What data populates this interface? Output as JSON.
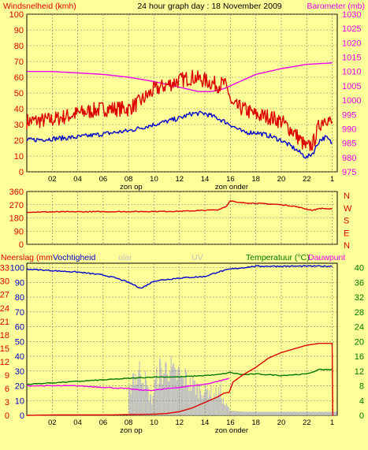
{
  "header": {
    "left_label": "Windsnelheid (kmh)",
    "title": "24 hour graph day : 18 November 2009",
    "right_label": "Barometer (mb)"
  },
  "x_axis": {
    "tick_labels": [
      "02",
      "04",
      "06",
      "08",
      "10",
      "12",
      "14",
      "16",
      "18",
      "20",
      "22",
      "1"
    ],
    "sunrise_label": "zon op",
    "sunset_label": "zon onder",
    "sunrise_hour": 8.2,
    "sunset_hour": 16.1
  },
  "colors": {
    "background": "#ffff99",
    "grid": "#777777",
    "red": "#dd0000",
    "blue": "#0000cc",
    "magenta": "#ee00ee",
    "green": "#007700",
    "gray": "#c0c0c0"
  },
  "chart_data": [
    {
      "type": "line",
      "x_range": [
        0,
        24.4
      ],
      "left_axis": {
        "label": "Windsnelheid (kmh)",
        "ticks": [
          0,
          10,
          20,
          30,
          40,
          50,
          60,
          70,
          80,
          90,
          100
        ],
        "ylim": [
          0,
          100
        ]
      },
      "right_axis": {
        "label": "Barometer (mb)",
        "ticks": [
          975,
          980,
          985,
          990,
          995,
          1000,
          1005,
          1010,
          1015,
          1020,
          1025,
          1030
        ],
        "ylim": [
          975,
          1030
        ]
      },
      "grid": true,
      "series": [
        {
          "color": "#dd0000",
          "axis": "left",
          "noise": 5,
          "x": [
            0,
            2,
            4,
            6,
            8,
            9,
            10,
            11,
            12,
            13,
            14,
            15,
            15.5,
            15.9,
            16.1,
            17,
            18,
            19,
            20,
            21,
            21.5,
            22,
            22.5,
            23,
            23.5,
            24
          ],
          "y": [
            32,
            33,
            37,
            40,
            40,
            45,
            52,
            55,
            58,
            60,
            58,
            55,
            56,
            50,
            42,
            40,
            36,
            35,
            32,
            25,
            20,
            15,
            18,
            30,
            35,
            30
          ]
        },
        {
          "color": "#0000cc",
          "axis": "left",
          "noise": 1.5,
          "x": [
            0,
            2,
            4,
            6,
            8,
            10,
            12,
            13,
            14,
            15,
            16,
            17,
            18,
            19,
            20,
            21,
            21.5,
            22,
            22.5,
            23,
            23.5,
            24
          ],
          "y": [
            20,
            21,
            22,
            24,
            26,
            30,
            34,
            37,
            37,
            34,
            30,
            25,
            25,
            23,
            20,
            15,
            12,
            9,
            12,
            20,
            22,
            18
          ]
        },
        {
          "color": "#ee00ee",
          "axis": "right",
          "noise": 0,
          "x": [
            0,
            2,
            4,
            6,
            8,
            10,
            12,
            13.5,
            14.5,
            15.5,
            16.5,
            18,
            20,
            22,
            24
          ],
          "y": [
            1010,
            1010,
            1009.5,
            1009,
            1008,
            1006.5,
            1004.5,
            1003,
            1003,
            1004,
            1006,
            1009,
            1011,
            1012.5,
            1013
          ]
        }
      ]
    },
    {
      "type": "line",
      "x_range": [
        0,
        24.4
      ],
      "left_axis": {
        "ticks": [
          0,
          90,
          180,
          270,
          360
        ],
        "ylim": [
          0,
          360
        ]
      },
      "right_axis": {
        "tick_labels": [
          "N",
          "W",
          "S",
          "E",
          "N"
        ]
      },
      "grid": true,
      "series": [
        {
          "color": "#dd0000",
          "axis": "left",
          "noise": 3,
          "x": [
            0,
            4,
            8,
            12,
            15,
            15.7,
            16,
            16.5,
            18,
            20,
            21,
            22,
            22.5,
            23,
            24
          ],
          "y": [
            220,
            222,
            223,
            225,
            235,
            260,
            300,
            285,
            280,
            270,
            260,
            240,
            232,
            245,
            240
          ]
        }
      ]
    },
    {
      "type": "line",
      "x_range": [
        0,
        24.4
      ],
      "top_labels": [
        "Neerslag (mm",
        "Vochtigheid",
        "olar",
        "UV",
        "Temperatuur (°C)",
        "Dauwpunt"
      ],
      "left_axis": {
        "ticks": [
          0,
          3,
          6,
          9,
          12,
          15,
          18,
          21,
          24,
          27,
          30,
          33
        ],
        "ylim": [
          0,
          34
        ]
      },
      "humidity_axis": {
        "ticks": [
          0,
          10,
          20,
          30,
          40,
          50,
          60,
          70,
          80,
          90,
          100
        ],
        "ylim": [
          0,
          103
        ]
      },
      "right_axis": {
        "ticks": [
          0,
          4,
          8,
          12,
          16,
          20,
          24,
          28,
          32,
          36,
          40
        ],
        "ylim": [
          0,
          41.2
        ]
      },
      "grid": true,
      "series": [
        {
          "color": "#0000cc",
          "axis": "humidity",
          "noise": 0.4,
          "x": [
            0,
            2,
            4,
            6,
            7,
            8,
            9,
            10,
            11,
            12,
            14,
            15,
            16,
            17,
            18,
            20,
            24
          ],
          "y": [
            99,
            98,
            97,
            95,
            93,
            90,
            86,
            91,
            92,
            93,
            94,
            97,
            99,
            100,
            101,
            101,
            101
          ]
        },
        {
          "color": "#007700",
          "axis": "humidity",
          "noise": 0.3,
          "x": [
            0,
            2,
            4,
            6,
            8,
            10,
            12,
            14,
            15,
            16,
            17,
            18,
            20,
            22,
            23,
            24
          ],
          "y": [
            21,
            22,
            23,
            24,
            25,
            26,
            26,
            27,
            27.5,
            29,
            27.5,
            28,
            27,
            28,
            31,
            31
          ]
        },
        {
          "color": "#ee00ee",
          "axis": "humidity",
          "noise": 0.3,
          "x": [
            0,
            2,
            4,
            6,
            8,
            9,
            10,
            11,
            12,
            13,
            14,
            15,
            15.9
          ],
          "y": [
            20,
            20,
            20,
            19,
            18,
            17,
            17,
            18,
            19,
            20,
            21,
            23,
            25
          ]
        },
        {
          "color": "#dd0000",
          "axis": "right",
          "noise": 0,
          "x": [
            0,
            2,
            4,
            6,
            8,
            10,
            11,
            12,
            13,
            14,
            15,
            15.5,
            15.9,
            16.2,
            17,
            18,
            19,
            20,
            21,
            22,
            23,
            24,
            24.05,
            24.1
          ],
          "y": [
            0,
            0.1,
            0.1,
            0.1,
            0.2,
            0.3,
            0.5,
            1,
            2,
            3.5,
            5,
            6,
            6.2,
            9,
            11,
            13,
            15.5,
            17,
            18,
            19,
            19.5,
            19.5,
            0,
            0
          ]
        }
      ],
      "bars": {
        "name": "olar",
        "color": "#c0c0c0",
        "axis": "left",
        "x": [
          8,
          8.3,
          8.6,
          8.9,
          9.2,
          9.5,
          9.8,
          10.1,
          10.4,
          10.7,
          11,
          11.3,
          11.6,
          11.9,
          12.2,
          12.5,
          12.8,
          13.1,
          13.4,
          13.7,
          14,
          14.3,
          14.6,
          14.9,
          15.2,
          15.5,
          15.8,
          16,
          17,
          18,
          19,
          20,
          21,
          22,
          23,
          24
        ],
        "y": [
          5,
          11,
          10,
          12,
          10,
          6,
          4,
          9,
          12,
          11,
          13,
          12,
          10,
          11,
          9,
          10,
          8,
          8,
          7,
          7,
          6,
          7,
          5,
          6,
          6,
          3,
          2,
          1,
          0.8,
          0.8,
          0.8,
          0.8,
          0.8,
          0.8,
          0.8,
          0.8
        ]
      }
    }
  ]
}
